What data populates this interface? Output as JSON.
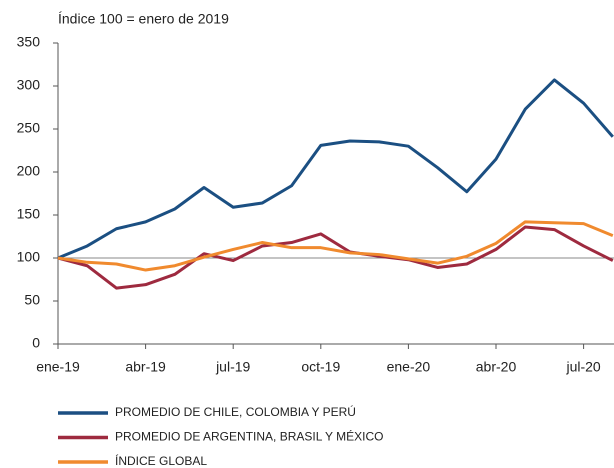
{
  "chart_data": {
    "type": "line",
    "y_label": "Índice 100 = enero de 2019",
    "categories": [
      "ene-19",
      null,
      null,
      "abr-19",
      null,
      null,
      "jul-19",
      null,
      null,
      "oct-19",
      null,
      null,
      "ene-20",
      null,
      null,
      "abr-20",
      null,
      null,
      "jul-20",
      null
    ],
    "series": [
      {
        "name": "PROMEDIO DE CHILE, COLOMBIA Y PERÚ",
        "color": "#1b4f82",
        "values": [
          100,
          114,
          134,
          142,
          157,
          182,
          159,
          164,
          184,
          231,
          236,
          235,
          230,
          205,
          177,
          215,
          273,
          307,
          280,
          241
        ]
      },
      {
        "name": "PROMEDIO DE ARGENTINA, BRASIL Y MÉXICO",
        "color": "#9e2a3f",
        "values": [
          100,
          91,
          65,
          69,
          81,
          105,
          97,
          114,
          118,
          128,
          107,
          102,
          98,
          89,
          93,
          110,
          136,
          133,
          114,
          97
        ]
      },
      {
        "name": "ÍNDICE GLOBAL",
        "color": "#f08a2e",
        "values": [
          100,
          95,
          93,
          86,
          91,
          101,
          110,
          118,
          112,
          112,
          106,
          104,
          99,
          94,
          102,
          117,
          142,
          141,
          140,
          126
        ]
      }
    ],
    "baseline": 100,
    "ylim": [
      0,
      350
    ],
    "yticks": [
      0,
      50,
      100,
      150,
      200,
      250,
      300,
      350
    ]
  }
}
